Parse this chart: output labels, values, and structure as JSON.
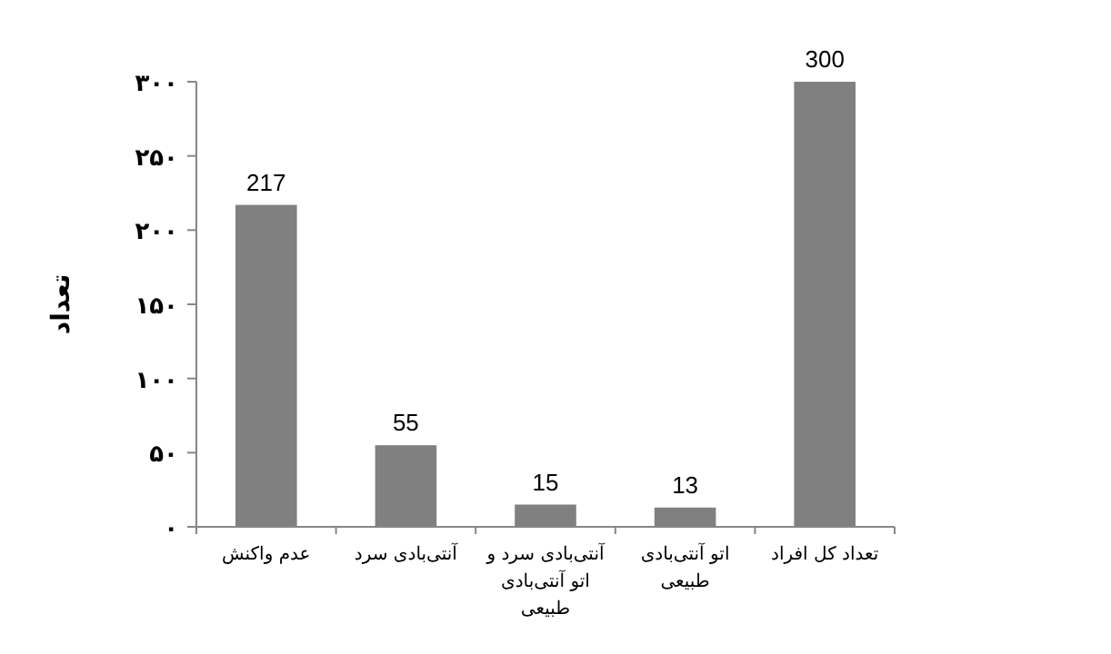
{
  "chart_data": {
    "type": "bar",
    "ylabel": "تعداد",
    "categories": [
      "عدم واکنش",
      "آنتی‌بادی سرد",
      "آنتی‌بادی سرد و اتو آنتی‌بادی طبیعی",
      "اتو آنتی‌بادی طبیعی",
      "تعداد کل افراد"
    ],
    "values": [
      217,
      55,
      15,
      13,
      300
    ],
    "color": "#808080",
    "ylim": [
      0,
      300
    ],
    "yticks": [
      {
        "value": 0,
        "label": "۰"
      },
      {
        "value": 50,
        "label": "۵۰"
      },
      {
        "value": 100,
        "label": "۱۰۰"
      },
      {
        "value": 150,
        "label": "۱۵۰"
      },
      {
        "value": 200,
        "label": "۲۰۰"
      },
      {
        "value": 250,
        "label": "۲۵۰"
      },
      {
        "value": 300,
        "label": "۳۰۰"
      }
    ],
    "data_labels": true
  }
}
